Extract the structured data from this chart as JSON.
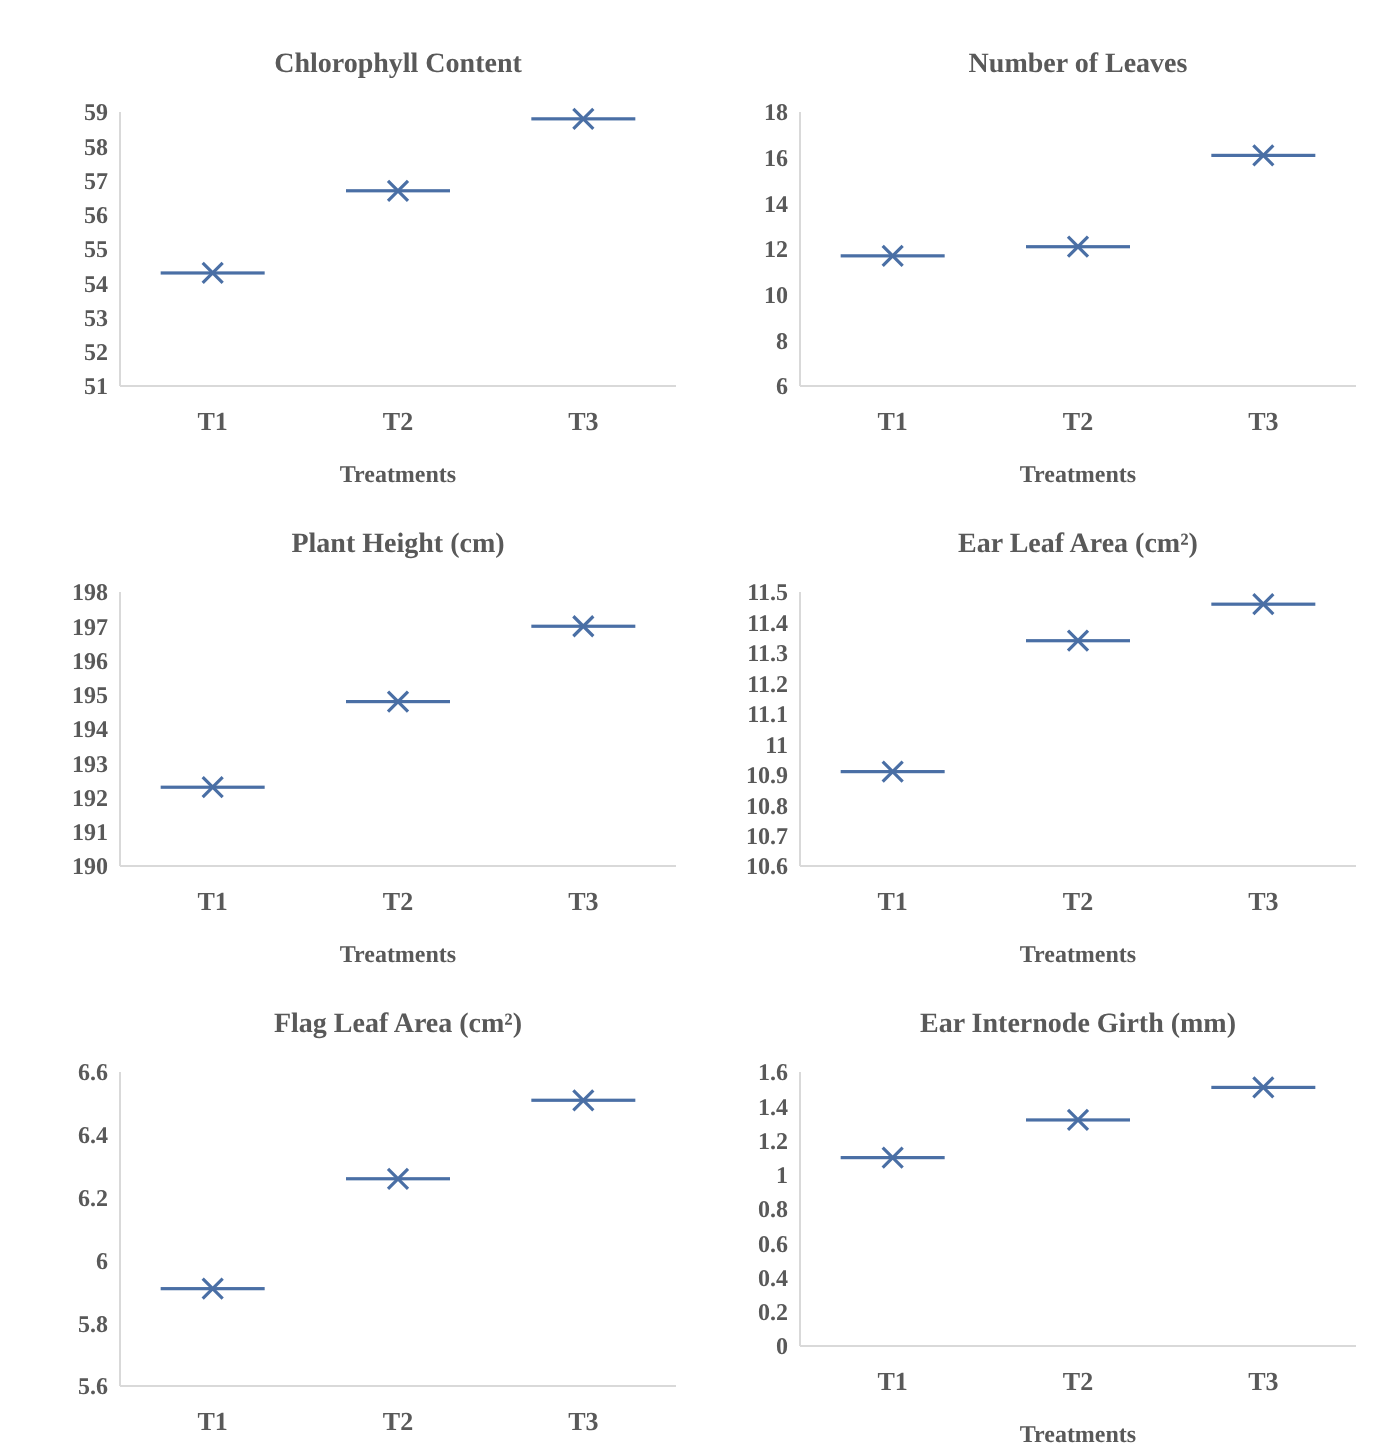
{
  "chart_data": [
    {
      "type": "scatter",
      "title": "Chlorophyll Content",
      "xlabel": "Treatments",
      "categories": [
        "T1",
        "T2",
        "T3"
      ],
      "marker": "cross",
      "ylim": [
        51,
        59
      ],
      "yticks": [
        51,
        52,
        53,
        54,
        55,
        56,
        57,
        58,
        59
      ],
      "series": [
        {
          "color": "#4a6fa5",
          "values": [
            54.3,
            56.7,
            58.8
          ]
        }
      ]
    },
    {
      "type": "scatter",
      "title": "Number of Leaves",
      "xlabel": "Treatments",
      "categories": [
        "T1",
        "T2",
        "T3"
      ],
      "marker": "cross",
      "ylim": [
        6,
        18
      ],
      "yticks": [
        6,
        8,
        10,
        12,
        14,
        16,
        18
      ],
      "series": [
        {
          "color": "#4a6fa5",
          "values": [
            11.7,
            12.1,
            16.1
          ]
        }
      ]
    },
    {
      "type": "scatter",
      "title": "Plant Height (cm)",
      "xlabel": "Treatments",
      "categories": [
        "T1",
        "T2",
        "T3"
      ],
      "marker": "cross",
      "ylim": [
        190,
        198
      ],
      "yticks": [
        190,
        191,
        192,
        193,
        194,
        195,
        196,
        197,
        198
      ],
      "series": [
        {
          "color": "#4a6fa5",
          "values": [
            192.3,
            194.8,
            197.0
          ]
        }
      ]
    },
    {
      "type": "scatter",
      "title": "Ear Leaf Area (cm²)",
      "xlabel": "Treatments",
      "categories": [
        "T1",
        "T2",
        "T3"
      ],
      "marker": "cross",
      "ylim": [
        10.6,
        11.5
      ],
      "yticks": [
        10.6,
        10.7,
        10.8,
        10.9,
        11,
        11.1,
        11.2,
        11.3,
        11.4,
        11.5
      ],
      "series": [
        {
          "color": "#4a6fa5",
          "values": [
            10.91,
            11.34,
            11.46
          ]
        }
      ]
    },
    {
      "type": "scatter",
      "title": "Flag Leaf Area (cm²)",
      "categories": [
        "T1",
        "T2",
        "T3"
      ],
      "marker": "cross",
      "ylim": [
        5.6,
        6.6
      ],
      "yticks": [
        5.6,
        5.8,
        6,
        6.2,
        6.4,
        6.6
      ],
      "series": [
        {
          "color": "#4a6fa5",
          "values": [
            5.91,
            6.26,
            6.51
          ]
        }
      ]
    },
    {
      "type": "scatter",
      "title": "Ear Internode Girth (mm)",
      "xlabel": "Treatments",
      "categories": [
        "T1",
        "T2",
        "T3"
      ],
      "marker": "cross",
      "ylim": [
        0,
        1.6
      ],
      "yticks": [
        0,
        0.2,
        0.4,
        0.6,
        0.8,
        1,
        1.2,
        1.4,
        1.6
      ],
      "series": [
        {
          "color": "#4a6fa5",
          "values": [
            1.1,
            1.32,
            1.51
          ]
        }
      ]
    }
  ]
}
